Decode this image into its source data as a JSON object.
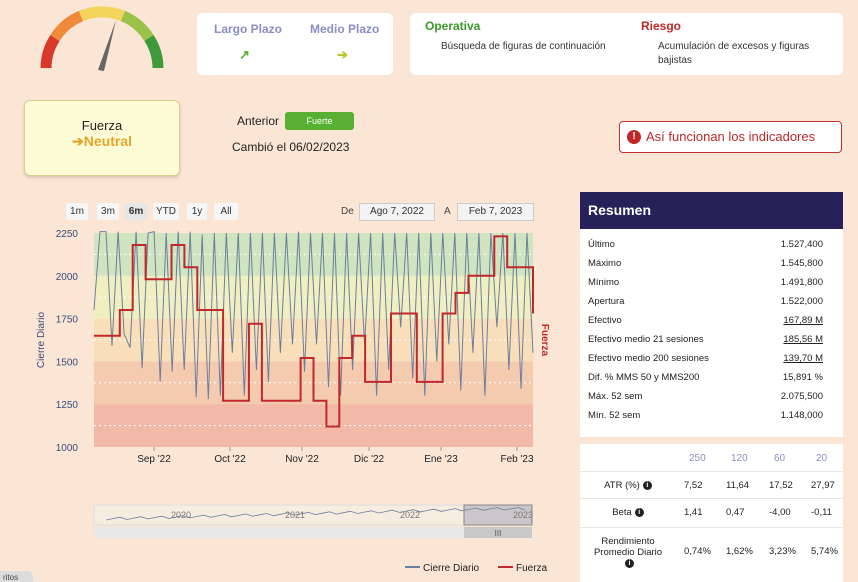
{
  "gauge": {
    "colors": [
      "#d9392b",
      "#ef8a3a",
      "#f2d55a",
      "#9ac24a",
      "#3e9a3a"
    ],
    "needle": "#666666"
  },
  "horizons": {
    "long": {
      "label": "Largo Plazo",
      "arrow": "↗",
      "color": "#58b032"
    },
    "medium": {
      "label": "Medio Plazo",
      "arrow": "➔",
      "color": "#b8c82e"
    }
  },
  "operativa": {
    "title": "Operativa",
    "text": "Búsqueda de figuras de continuación",
    "color": "#3a9a2a"
  },
  "riesgo": {
    "title": "Riesgo",
    "text": "Acumulación de excesos y figuras bajistas",
    "color": "#c02828"
  },
  "fuerza": {
    "label": "Fuerza",
    "value": "➔Neutral",
    "value_color": "#e5a52a"
  },
  "anterior": {
    "label": "Anterior",
    "badge": "Fuerte",
    "cambio": "Cambió el 06/02/2023"
  },
  "indicators_button": {
    "icon": "!",
    "label": "Así funcionan los indicadores"
  },
  "ranges": [
    "1m",
    "3m",
    "6m",
    "YTD",
    "1y",
    "All"
  ],
  "active_range": "6m",
  "date_range": {
    "from_label": "De",
    "from": "Ago 7, 2022",
    "to_label": "A",
    "to": "Feb 7, 2023"
  },
  "chart_data": {
    "type": "line",
    "x_ticks": [
      "Sep '22",
      "Oct '22",
      "Nov '22",
      "Dic '22",
      "Ene '23",
      "Feb '23"
    ],
    "y_ticks": [
      "1000",
      "1250",
      "1500",
      "1750",
      "2000",
      "2250"
    ],
    "ylim": [
      1000,
      2250
    ],
    "ylabel_left": "Cierre Diario",
    "ylabel_right": "Fuerza",
    "bands": [
      {
        "from": 2000,
        "to": 2250,
        "color": "#cfe4bf"
      },
      {
        "from": 1750,
        "to": 2000,
        "color": "#f0efc2"
      },
      {
        "from": 1500,
        "to": 1750,
        "color": "#f8dfb9"
      },
      {
        "from": 1250,
        "to": 1500,
        "color": "#f5cbb0"
      },
      {
        "from": 1000,
        "to": 1250,
        "color": "#f2b9a8"
      }
    ],
    "series": [
      {
        "name": "Cierre Diario",
        "color": "#6b7fa0",
        "values": [
          1800,
          2280,
          2270,
          1590,
          2270,
          1660,
          1580,
          2260,
          1460,
          2250,
          2260,
          1380,
          2250,
          1440,
          2260,
          1450,
          2260,
          1290,
          2240,
          1280,
          2250,
          1300,
          2250,
          1550,
          2250,
          1300,
          2250,
          1450,
          2250,
          1380,
          2250,
          1550,
          2250,
          1600,
          2260,
          1440,
          2250,
          1600,
          2250,
          1350,
          2250,
          1300,
          2250,
          1450,
          2250,
          1600,
          2250,
          1300,
          2250,
          1450,
          2250,
          1700,
          2250,
          1400,
          2250,
          1300,
          2250,
          1500,
          2250,
          1600,
          2250,
          1330,
          2250,
          1550,
          2250,
          1300,
          2250,
          1700,
          2250,
          1450,
          2250,
          1340,
          2250,
          1550
        ]
      },
      {
        "name": "Fuerza",
        "color": "#c0282a",
        "values": [
          1650,
          1650,
          1800,
          2180,
          1980,
          1980,
          2180,
          2050,
          1800,
          1800,
          1270,
          1270,
          1720,
          1270,
          1270,
          1270,
          1520,
          1270,
          1120,
          1520,
          1650,
          1380,
          1380,
          1780,
          1780,
          1380,
          1380,
          1780,
          1900,
          2000,
          2000,
          2230,
          2050,
          2050,
          1780
        ]
      }
    ]
  },
  "navigator": {
    "years": [
      "2020",
      "2021",
      "2022",
      "2023"
    ]
  },
  "legend": [
    {
      "label": "Cierre Diario",
      "color": "#6b7fa0"
    },
    {
      "label": "Fuerza",
      "color": "#c0282a"
    }
  ],
  "resumen": {
    "title": "Resumen",
    "rows": [
      {
        "label": "Último",
        "value": "1.527,400"
      },
      {
        "label": "Máximo",
        "value": "1.545,800"
      },
      {
        "label": "Mínimo",
        "value": "1.491,800"
      },
      {
        "label": "Apertura",
        "value": "1.522,000"
      },
      {
        "label": "Efectivo",
        "value": "167,89 M"
      },
      {
        "label": "Efectivo medio 21 sesiones",
        "value": "185,56 M"
      },
      {
        "label": "Efectivo medio 200 sesiones",
        "value": "139,70 M"
      },
      {
        "label": "Dif. % MMS 50 y MMS200",
        "value": "15,891 %"
      },
      {
        "label": "Máx. 52 sem",
        "value": "2.075,500"
      },
      {
        "label": "Mín. 52 sem",
        "value": "1.148,000"
      }
    ]
  },
  "atr_table": {
    "headers": [
      "250",
      "120",
      "60",
      "20"
    ],
    "rows": [
      {
        "label": "ATR (%)",
        "values": [
          "7,52",
          "11,64",
          "17,52",
          "27,97"
        ]
      },
      {
        "label": "Beta",
        "values": [
          "1,41",
          "0,47",
          "-4,00",
          "-0,11"
        ]
      },
      {
        "label": "Rendimiento Promedio Diario",
        "values": [
          "0,74%",
          "1,62%",
          "3,23%",
          "5,74%"
        ]
      }
    ]
  },
  "footer_tab": "ritos"
}
